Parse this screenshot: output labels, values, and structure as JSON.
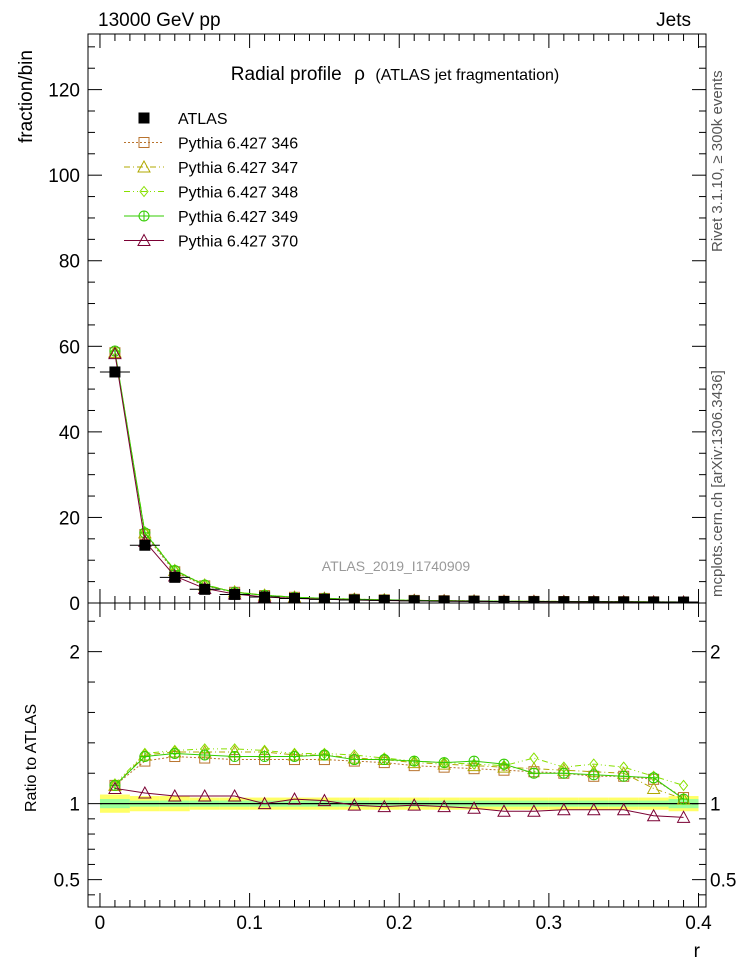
{
  "header": {
    "left": "13000 GeV pp",
    "right": "Jets",
    "side_top": "Rivet 3.1.10, ≥ 300k events",
    "side_bottom": "mcplots.cern.ch [arXiv:1306.3436]"
  },
  "chart_data": [
    {
      "type": "line",
      "title": "Radial profile  ρ (ATLAS jet fragmentation)",
      "title_main": "Radial profile",
      "title_rho": "ρ",
      "title_suffix": "(ATLAS jet fragmentation)",
      "watermark": "ATLAS_2019_I1740909",
      "ylabel": "fraction/bin",
      "xlim": [
        -0.008,
        0.405
      ],
      "ylim": [
        0,
        133
      ],
      "yticks": [
        0,
        20,
        40,
        60,
        80,
        100,
        120
      ],
      "yticklabels": [
        "0",
        "20",
        "40",
        "60",
        "80",
        "100",
        "120"
      ],
      "legend_position": "top-left",
      "x": [
        0.01,
        0.03,
        0.05,
        0.07,
        0.09,
        0.11,
        0.13,
        0.15,
        0.17,
        0.19,
        0.21,
        0.23,
        0.25,
        0.27,
        0.29,
        0.31,
        0.33,
        0.35,
        0.37,
        0.39
      ],
      "data": {
        "name": "ATLAS",
        "color": "#000000",
        "values": [
          54.0,
          13.5,
          6.0,
          3.2,
          2.0,
          1.4,
          1.05,
          0.85,
          0.7,
          0.6,
          0.5,
          0.45,
          0.4,
          0.35,
          0.32,
          0.3,
          0.28,
          0.26,
          0.24,
          0.22
        ]
      },
      "series": [
        {
          "name": "Pythia 6.427 346",
          "color": "#b8732e",
          "marker": "square",
          "dash": "2,2",
          "values": [
            58.5,
            16.0,
            7.3,
            4.0,
            2.5,
            1.75,
            1.33,
            1.07,
            0.87,
            0.74,
            0.61,
            0.54,
            0.48,
            0.42,
            0.38,
            0.35,
            0.32,
            0.3,
            0.27,
            0.22
          ]
        },
        {
          "name": "Pythia 6.427 347",
          "color": "#b0a800",
          "marker": "triangle",
          "dash": "6,3,1,3",
          "values": [
            58.6,
            16.4,
            7.6,
            4.2,
            2.6,
            1.82,
            1.36,
            1.1,
            0.9,
            0.76,
            0.62,
            0.55,
            0.49,
            0.43,
            0.39,
            0.36,
            0.33,
            0.31,
            0.26,
            0.22
          ]
        },
        {
          "name": "Pythia 6.427 348",
          "color": "#88e000",
          "marker": "diamond",
          "dash": "6,3,1,3,1,3",
          "values": [
            58.8,
            16.6,
            7.7,
            4.3,
            2.6,
            1.83,
            1.36,
            1.1,
            0.9,
            0.76,
            0.62,
            0.55,
            0.49,
            0.43,
            0.4,
            0.36,
            0.33,
            0.31,
            0.28,
            0.25
          ]
        },
        {
          "name": "Pythia 6.427 349",
          "color": "#33cc00",
          "marker": "circle-plus",
          "dash": "",
          "values": [
            58.9,
            16.4,
            7.6,
            4.2,
            2.5,
            1.8,
            1.35,
            1.09,
            0.88,
            0.75,
            0.61,
            0.54,
            0.49,
            0.42,
            0.37,
            0.35,
            0.32,
            0.3,
            0.27,
            0.22
          ]
        },
        {
          "name": "Pythia 6.427 370",
          "color": "#7a0033",
          "marker": "triangle",
          "dash": "",
          "values": [
            58.3,
            14.4,
            6.3,
            3.4,
            2.1,
            1.4,
            1.08,
            0.87,
            0.69,
            0.58,
            0.49,
            0.44,
            0.39,
            0.33,
            0.3,
            0.29,
            0.27,
            0.25,
            0.22,
            0.2
          ]
        }
      ]
    },
    {
      "type": "line",
      "ylabel": "Ratio to ATLAS",
      "xlabel": "r",
      "xlim": [
        -0.008,
        0.405
      ],
      "ylim": [
        0.32,
        2.32
      ],
      "yticks": [
        0.5,
        1,
        2
      ],
      "yticklabels": [
        "0.5",
        "1",
        "2"
      ],
      "xticks": [
        0,
        0.1,
        0.2,
        0.3,
        0.4
      ],
      "xticklabels": [
        "0",
        "0.1",
        "0.2",
        "0.3",
        "0.4"
      ],
      "x": [
        0.01,
        0.03,
        0.05,
        0.07,
        0.09,
        0.11,
        0.13,
        0.15,
        0.17,
        0.19,
        0.21,
        0.23,
        0.25,
        0.27,
        0.29,
        0.31,
        0.33,
        0.35,
        0.37,
        0.39
      ],
      "band_yellow": [
        0.06,
        0.05,
        0.05,
        0.04,
        0.04,
        0.04,
        0.04,
        0.04,
        0.04,
        0.04,
        0.04,
        0.04,
        0.04,
        0.04,
        0.04,
        0.04,
        0.04,
        0.04,
        0.04,
        0.05
      ],
      "band_green": [
        0.03,
        0.02,
        0.02,
        0.02,
        0.02,
        0.02,
        0.02,
        0.02,
        0.02,
        0.02,
        0.02,
        0.02,
        0.02,
        0.02,
        0.02,
        0.02,
        0.02,
        0.02,
        0.02,
        0.03
      ],
      "series": [
        {
          "name": "Pythia 6.427 346",
          "color": "#b8732e",
          "marker": "square",
          "dash": "2,2",
          "values": [
            1.12,
            1.28,
            1.31,
            1.3,
            1.29,
            1.29,
            1.29,
            1.29,
            1.28,
            1.27,
            1.25,
            1.24,
            1.23,
            1.22,
            1.21,
            1.2,
            1.18,
            1.18,
            1.16,
            1.04
          ]
        },
        {
          "name": "Pythia 6.427 347",
          "color": "#b0a800",
          "marker": "triangle",
          "dash": "6,3,1,3",
          "values": [
            1.12,
            1.32,
            1.34,
            1.34,
            1.34,
            1.34,
            1.32,
            1.32,
            1.3,
            1.29,
            1.27,
            1.26,
            1.25,
            1.24,
            1.23,
            1.22,
            1.21,
            1.2,
            1.1,
            1.03
          ]
        },
        {
          "name": "Pythia 6.427 348",
          "color": "#88e000",
          "marker": "diamond",
          "dash": "6,3,1,3,1,3",
          "values": [
            1.13,
            1.33,
            1.35,
            1.36,
            1.36,
            1.35,
            1.33,
            1.33,
            1.32,
            1.3,
            1.28,
            1.27,
            1.26,
            1.25,
            1.3,
            1.24,
            1.26,
            1.24,
            1.18,
            1.12
          ]
        },
        {
          "name": "Pythia 6.427 349",
          "color": "#33cc00",
          "marker": "circle-plus",
          "dash": "",
          "values": [
            1.12,
            1.31,
            1.33,
            1.32,
            1.31,
            1.31,
            1.31,
            1.32,
            1.29,
            1.29,
            1.28,
            1.27,
            1.28,
            1.26,
            1.2,
            1.2,
            1.19,
            1.18,
            1.17,
            1.03
          ]
        },
        {
          "name": "Pythia 6.427 370",
          "color": "#7a0033",
          "marker": "triangle",
          "dash": "",
          "values": [
            1.1,
            1.07,
            1.05,
            1.05,
            1.05,
            1.0,
            1.03,
            1.02,
            0.99,
            0.98,
            0.99,
            0.98,
            0.97,
            0.95,
            0.95,
            0.96,
            0.96,
            0.96,
            0.92,
            0.91
          ]
        }
      ]
    }
  ]
}
